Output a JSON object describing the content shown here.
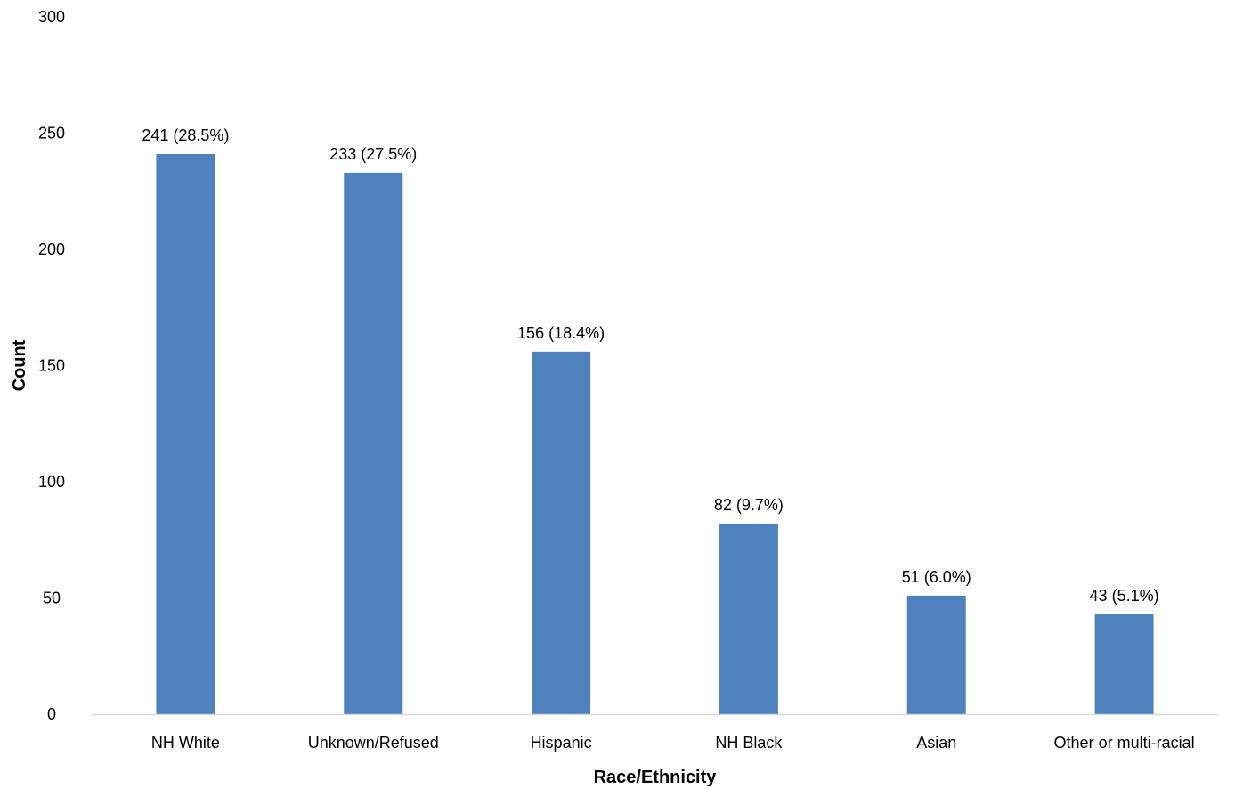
{
  "chart_data": {
    "type": "bar",
    "categories": [
      "NH White",
      "Unknown/Refused",
      "Hispanic",
      "NH Black",
      "Asian",
      "Other or multi-racial"
    ],
    "values": [
      241,
      233,
      156,
      82,
      51,
      43
    ],
    "data_labels": [
      "241 (28.5%)",
      "233 (27.5%)",
      "156 (18.4%)",
      "82 (9.7%)",
      "51 (6.0%)",
      "43 (5.1%)"
    ],
    "title": "",
    "xlabel": "Race/Ethnicity",
    "ylabel": "Count",
    "ylim": [
      0,
      300
    ],
    "yticks": [
      "0",
      "50",
      "100",
      "150",
      "200",
      "250",
      "300"
    ],
    "grid": false,
    "legend": "none",
    "bar_color": "#4F81BD",
    "axis_color": "#D9D9D9"
  }
}
